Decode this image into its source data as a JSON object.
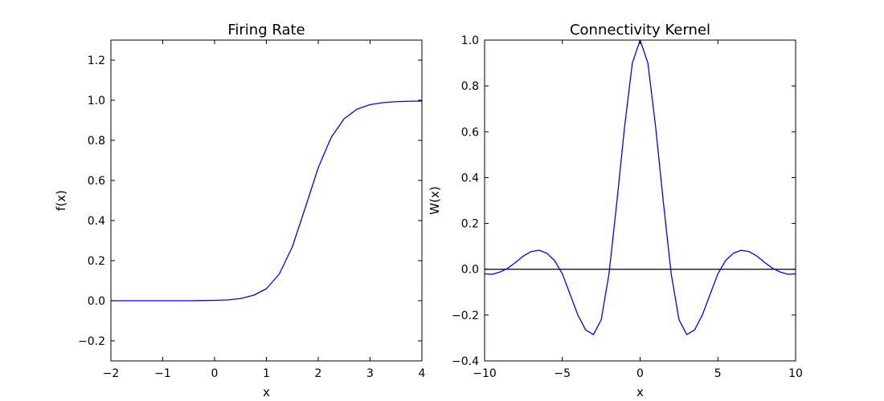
{
  "chart_data": [
    {
      "type": "line",
      "title": "Firing Rate",
      "xlabel": "x",
      "ylabel": "f(x)",
      "xlim": [
        -2,
        4
      ],
      "ylim": [
        -0.3,
        1.3
      ],
      "xticks": [
        -2,
        -1,
        0,
        1,
        2,
        3,
        4
      ],
      "xtick_labels": [
        "−2",
        "−1",
        "0",
        "1",
        "2",
        "3",
        "4"
      ],
      "yticks": [
        -0.2,
        0.0,
        0.2,
        0.4,
        0.6,
        0.8,
        1.0,
        1.2
      ],
      "ytick_labels": [
        "−0.2",
        "0.0",
        "0.2",
        "0.4",
        "0.6",
        "0.8",
        "1.0",
        "1.2"
      ],
      "grid": false,
      "series": [
        {
          "color": "#0000ff",
          "x": [
            -2.0,
            -1.5,
            -1.0,
            -0.5,
            0.0,
            0.25,
            0.5,
            0.75,
            1.0,
            1.25,
            1.5,
            1.75,
            2.0,
            2.25,
            2.5,
            2.75,
            3.0,
            3.25,
            3.5,
            3.75,
            4.0
          ],
          "y": [
            0.0,
            0.0,
            0.0,
            0.0,
            0.002,
            0.004,
            0.011,
            0.027,
            0.06,
            0.134,
            0.269,
            0.464,
            0.664,
            0.815,
            0.908,
            0.956,
            0.978,
            0.988,
            0.993,
            0.995,
            0.996
          ]
        }
      ]
    },
    {
      "type": "line",
      "title": "Connectivity Kernel",
      "xlabel": "x",
      "ylabel": "W(x)",
      "xlim": [
        -10,
        10
      ],
      "ylim": [
        -0.4,
        1.0
      ],
      "xticks": [
        -10,
        -5,
        0,
        5,
        10
      ],
      "xtick_labels": [
        "−10",
        "−5",
        "0",
        "5",
        "10"
      ],
      "yticks": [
        -0.4,
        -0.2,
        0.0,
        0.2,
        0.4,
        0.6,
        0.8,
        1.0
      ],
      "ytick_labels": [
        "−0.4",
        "−0.2",
        "0.0",
        "0.2",
        "0.4",
        "0.6",
        "0.8",
        "1.0"
      ],
      "grid": false,
      "hline": {
        "y": 0,
        "color": "#000000"
      },
      "series": [
        {
          "color": "#0000ff",
          "x": [
            -10,
            -9.5,
            -9,
            -8.5,
            -8,
            -7.5,
            -7,
            -6.5,
            -6,
            -5.5,
            -5,
            -4.5,
            -4,
            -3.5,
            -3,
            -2.5,
            -2,
            -1.5,
            -1,
            -0.5,
            0,
            0.5,
            1,
            1.5,
            2,
            2.5,
            3,
            3.5,
            4,
            4.5,
            5,
            5.5,
            6,
            6.5,
            7,
            7.5,
            8,
            8.5,
            9,
            9.5,
            10
          ],
          "y": [
            -0.02,
            -0.022,
            -0.012,
            0.005,
            0.03,
            0.058,
            0.077,
            0.083,
            0.07,
            0.038,
            -0.02,
            -0.11,
            -0.2,
            -0.265,
            -0.285,
            -0.22,
            -0.02,
            0.29,
            0.62,
            0.9,
            1.0,
            0.9,
            0.62,
            0.29,
            -0.02,
            -0.22,
            -0.285,
            -0.265,
            -0.2,
            -0.11,
            -0.02,
            0.038,
            0.07,
            0.083,
            0.077,
            0.058,
            0.03,
            0.005,
            -0.012,
            -0.022,
            -0.02
          ]
        }
      ]
    }
  ]
}
